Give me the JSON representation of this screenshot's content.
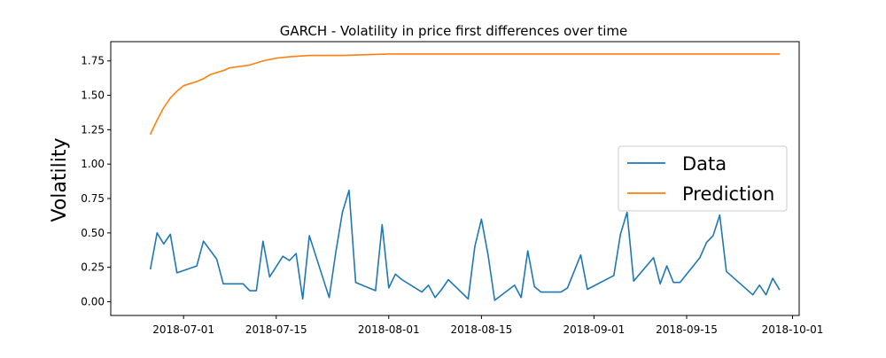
{
  "chart_data": {
    "type": "line",
    "title": "GARCH - Volatility in price first differences over time",
    "xlabel": "",
    "ylabel": "Volatility",
    "xlim": [
      "2018-06-20",
      "2018-10-02"
    ],
    "ylim": [
      -0.1,
      1.89
    ],
    "x_ticks": [
      "2018-07-01",
      "2018-07-15",
      "2018-08-01",
      "2018-08-15",
      "2018-09-01",
      "2018-09-15",
      "2018-10-01"
    ],
    "y_ticks": [
      0.0,
      0.25,
      0.5,
      0.75,
      1.0,
      1.25,
      1.5,
      1.75
    ],
    "y_tick_labels": [
      "0.00",
      "0.25",
      "0.50",
      "0.75",
      "1.00",
      "1.25",
      "1.50",
      "1.75"
    ],
    "grid": false,
    "legend_position": "center-right",
    "series": [
      {
        "name": "Data",
        "color": "#1f77b4",
        "points": [
          [
            "2018-06-26",
            0.24
          ],
          [
            "2018-06-27",
            0.5
          ],
          [
            "2018-06-28",
            0.42
          ],
          [
            "2018-06-29",
            0.49
          ],
          [
            "2018-06-30",
            0.21
          ],
          [
            "2018-07-03",
            0.26
          ],
          [
            "2018-07-04",
            0.44
          ],
          [
            "2018-07-06",
            0.31
          ],
          [
            "2018-07-07",
            0.13
          ],
          [
            "2018-07-10",
            0.13
          ],
          [
            "2018-07-11",
            0.08
          ],
          [
            "2018-07-12",
            0.08
          ],
          [
            "2018-07-13",
            0.44
          ],
          [
            "2018-07-14",
            0.18
          ],
          [
            "2018-07-16",
            0.33
          ],
          [
            "2018-07-17",
            0.3
          ],
          [
            "2018-07-18",
            0.35
          ],
          [
            "2018-07-19",
            0.02
          ],
          [
            "2018-07-20",
            0.48
          ],
          [
            "2018-07-23",
            0.03
          ],
          [
            "2018-07-24",
            0.36
          ],
          [
            "2018-07-25",
            0.65
          ],
          [
            "2018-07-26",
            0.81
          ],
          [
            "2018-07-27",
            0.14
          ],
          [
            "2018-07-30",
            0.08
          ],
          [
            "2018-07-31",
            0.56
          ],
          [
            "2018-08-01",
            0.1
          ],
          [
            "2018-08-02",
            0.2
          ],
          [
            "2018-08-03",
            0.16
          ],
          [
            "2018-08-06",
            0.07
          ],
          [
            "2018-08-07",
            0.12
          ],
          [
            "2018-08-08",
            0.03
          ],
          [
            "2018-08-09",
            0.09
          ],
          [
            "2018-08-10",
            0.16
          ],
          [
            "2018-08-13",
            0.02
          ],
          [
            "2018-08-14",
            0.4
          ],
          [
            "2018-08-15",
            0.6
          ],
          [
            "2018-08-16",
            0.34
          ],
          [
            "2018-08-17",
            0.01
          ],
          [
            "2018-08-20",
            0.12
          ],
          [
            "2018-08-21",
            0.03
          ],
          [
            "2018-08-22",
            0.37
          ],
          [
            "2018-08-23",
            0.11
          ],
          [
            "2018-08-24",
            0.07
          ],
          [
            "2018-08-27",
            0.07
          ],
          [
            "2018-08-28",
            0.1
          ],
          [
            "2018-08-29",
            0.22
          ],
          [
            "2018-08-30",
            0.34
          ],
          [
            "2018-08-31",
            0.09
          ],
          [
            "2018-09-04",
            0.19
          ],
          [
            "2018-09-05",
            0.49
          ],
          [
            "2018-09-06",
            0.65
          ],
          [
            "2018-09-07",
            0.15
          ],
          [
            "2018-09-10",
            0.32
          ],
          [
            "2018-09-11",
            0.13
          ],
          [
            "2018-09-12",
            0.26
          ],
          [
            "2018-09-13",
            0.14
          ],
          [
            "2018-09-14",
            0.14
          ],
          [
            "2018-09-17",
            0.32
          ],
          [
            "2018-09-18",
            0.43
          ],
          [
            "2018-09-19",
            0.48
          ],
          [
            "2018-09-20",
            0.63
          ],
          [
            "2018-09-21",
            0.22
          ],
          [
            "2018-09-25",
            0.05
          ],
          [
            "2018-09-26",
            0.12
          ],
          [
            "2018-09-27",
            0.05
          ],
          [
            "2018-09-28",
            0.17
          ],
          [
            "2018-09-29",
            0.09
          ]
        ]
      },
      {
        "name": "Prediction",
        "color": "#ff7f0e",
        "points": [
          [
            "2018-06-26",
            1.22
          ],
          [
            "2018-06-27",
            1.32
          ],
          [
            "2018-06-28",
            1.41
          ],
          [
            "2018-06-29",
            1.48
          ],
          [
            "2018-06-30",
            1.53
          ],
          [
            "2018-07-01",
            1.57
          ],
          [
            "2018-07-03",
            1.6
          ],
          [
            "2018-07-04",
            1.62
          ],
          [
            "2018-07-05",
            1.65
          ],
          [
            "2018-07-07",
            1.68
          ],
          [
            "2018-07-08",
            1.7
          ],
          [
            "2018-07-11",
            1.72
          ],
          [
            "2018-07-13",
            1.75
          ],
          [
            "2018-07-15",
            1.77
          ],
          [
            "2018-07-17",
            1.78
          ],
          [
            "2018-07-20",
            1.79
          ],
          [
            "2018-07-25",
            1.79
          ],
          [
            "2018-08-01",
            1.8
          ],
          [
            "2018-08-15",
            1.8
          ],
          [
            "2018-09-01",
            1.8
          ],
          [
            "2018-09-15",
            1.8
          ],
          [
            "2018-09-29",
            1.8
          ]
        ]
      }
    ]
  }
}
